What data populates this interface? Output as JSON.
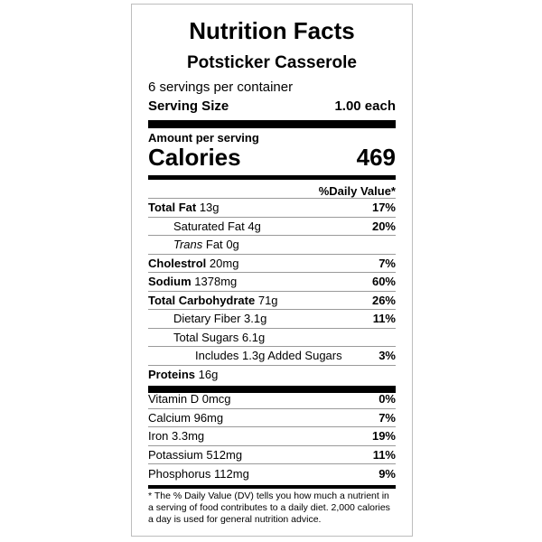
{
  "title": "Nutrition Facts",
  "product_name": "Potsticker Casserole",
  "servings_per_container": "6 servings per container",
  "serving_size_label": "Serving Size",
  "serving_size_value": "1.00 each",
  "amount_per_serving": "Amount per serving",
  "calories_label": "Calories",
  "calories_value": "469",
  "daily_value_header": "%Daily Value*",
  "nutrients": [
    {
      "name": "Total Fat",
      "amount": "13g",
      "dv": "17%"
    },
    {
      "name": "Saturated Fat",
      "amount": "4g",
      "dv": "20%"
    },
    {
      "name_italic": "Trans",
      "name": "Fat",
      "amount": "0g",
      "dv": ""
    },
    {
      "name": "Cholestrol",
      "amount": "20mg",
      "dv": "7%"
    },
    {
      "name": "Sodium",
      "amount": "1378mg",
      "dv": "60%"
    },
    {
      "name": "Total Carbohydrate",
      "amount": "71g",
      "dv": "26%"
    },
    {
      "name": "Dietary Fiber",
      "amount": "3.1g",
      "dv": "11%"
    },
    {
      "name": "Total Sugars",
      "amount": "6.1g",
      "dv": ""
    },
    {
      "name": "Includes 1.3g Added Sugars",
      "dv": "3%"
    },
    {
      "name": "Proteins",
      "amount": "16g",
      "dv": ""
    }
  ],
  "vitamins": [
    {
      "name": "Vitamin D",
      "amount": "0mcg",
      "dv": "0%"
    },
    {
      "name": "Calcium",
      "amount": "96mg",
      "dv": "7%"
    },
    {
      "name": "Iron",
      "amount": "3.3mg",
      "dv": "19%"
    },
    {
      "name": "Potassium",
      "amount": "512mg",
      "dv": "11%"
    },
    {
      "name": "Phosphorus",
      "amount": "112mg",
      "dv": "9%"
    }
  ],
  "footnote": "* The % Daily Value (DV) tells you how much a nutrient in a serving of food contributes to a daily diet. 2,000 calories a day is used for general nutrition advice."
}
